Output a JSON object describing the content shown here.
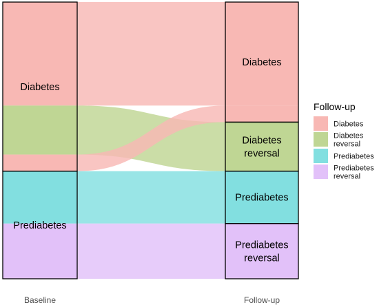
{
  "chart_data": {
    "type": "alluvial",
    "axes": [
      "Baseline",
      "Follow-up"
    ],
    "strata": {
      "Baseline": [
        "Diabetes",
        "Prediabetes"
      ],
      "Follow-up": [
        "Diabetes",
        "Diabetes reversal",
        "Prediabetes",
        "Prediabetes reversal"
      ]
    },
    "flows": [
      {
        "from": "Diabetes",
        "to": "Diabetes",
        "fill": "Diabetes",
        "value": 150
      },
      {
        "from": "Diabetes",
        "to": "Diabetes reversal",
        "fill": "Diabetes reversal",
        "value": 71
      },
      {
        "from": "Diabetes",
        "to": "Diabetes",
        "fill": "Diabetes",
        "value": 24
      },
      {
        "from": "Prediabetes",
        "to": "Prediabetes",
        "fill": "Prediabetes",
        "value": 76
      },
      {
        "from": "Prediabetes",
        "to": "Prediabetes reversal",
        "fill": "Prediabetes reversal",
        "value": 80
      }
    ],
    "legend": {
      "title": "Follow-up",
      "position": "right",
      "items": [
        {
          "key": "Diabetes",
          "lines": [
            "Diabetes"
          ],
          "color": "#F8B8B4"
        },
        {
          "key": "Diabetes reversal",
          "lines": [
            "Diabetes",
            "reversal"
          ],
          "color": "#BFD694"
        },
        {
          "key": "Prediabetes",
          "lines": [
            "Prediabetes"
          ],
          "color": "#82DFE0"
        },
        {
          "key": "Prediabetes reversal",
          "lines": [
            "Prediabetes",
            "reversal"
          ],
          "color": "#E2C1F9"
        }
      ]
    },
    "stratum_labels": {
      "Baseline": [
        [
          "Diabetes"
        ],
        [
          "Prediabetes"
        ]
      ],
      "Follow-up": [
        [
          "Diabetes"
        ],
        [
          "Diabetes",
          "reversal"
        ],
        [
          "Prediabetes"
        ],
        [
          "Prediabetes",
          "reversal"
        ]
      ]
    },
    "grid": false
  }
}
